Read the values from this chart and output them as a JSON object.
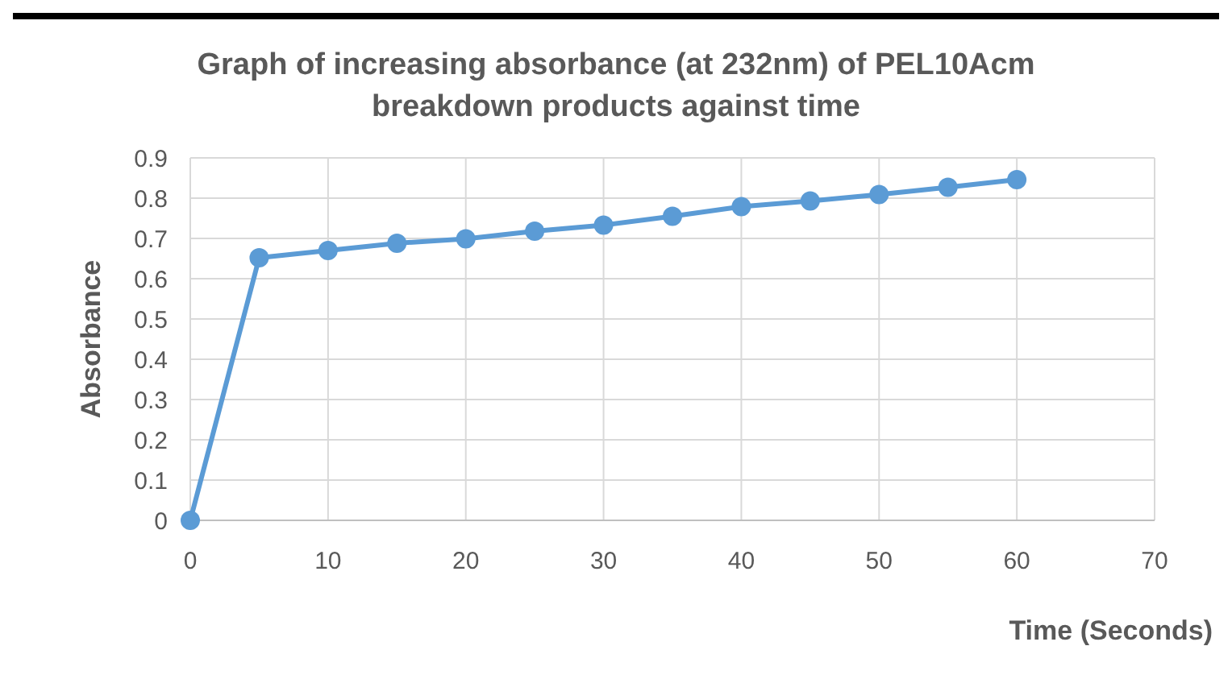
{
  "chart_data": {
    "type": "line",
    "title": "Graph of increasing absorbance (at 232nm) of PEL10Acm breakdown products against time",
    "xlabel": "Time (Seconds)",
    "ylabel": "Absorbance",
    "x": [
      0,
      5,
      10,
      15,
      20,
      25,
      30,
      35,
      40,
      45,
      50,
      55,
      60
    ],
    "series": [
      {
        "color": "#5b9bd5",
        "values": [
          0,
          0.652,
          0.67,
          0.688,
          0.699,
          0.718,
          0.733,
          0.755,
          0.779,
          0.793,
          0.809,
          0.827,
          0.846
        ]
      }
    ],
    "xlim": [
      0,
      70
    ],
    "xticks": [
      0,
      10,
      20,
      30,
      40,
      50,
      60,
      70
    ],
    "ylim": [
      0,
      0.9
    ],
    "yticks": [
      0,
      0.1,
      0.2,
      0.3,
      0.4,
      0.5,
      0.6,
      0.7,
      0.8,
      0.9
    ],
    "grid": true,
    "marker": "circle",
    "line_style": "solid"
  }
}
